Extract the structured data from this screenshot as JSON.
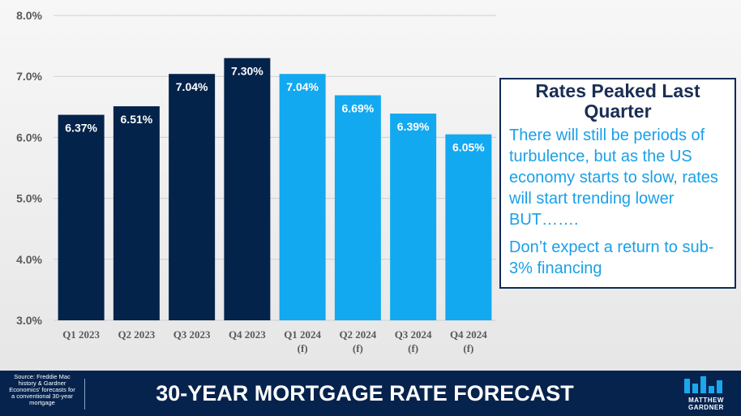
{
  "chart_data": {
    "type": "bar",
    "categories": [
      [
        "Q1 2023"
      ],
      [
        "Q2 2023"
      ],
      [
        "Q3 2023"
      ],
      [
        "Q4 2023"
      ],
      [
        "Q1 2024",
        "(f)"
      ],
      [
        "Q2 2024",
        "(f)"
      ],
      [
        "Q3 2024",
        "(f)"
      ],
      [
        "Q4 2024",
        "(f)"
      ]
    ],
    "values": [
      6.37,
      6.51,
      7.04,
      7.3,
      7.04,
      6.69,
      6.39,
      6.05
    ],
    "value_labels": [
      "6.37%",
      "6.51%",
      "7.04%",
      "7.30%",
      "7.04%",
      "6.69%",
      "6.39%",
      "6.05%"
    ],
    "ylim": [
      3.0,
      8.0
    ],
    "yticks": [
      "3.0%",
      "4.0%",
      "5.0%",
      "6.0%",
      "7.0%",
      "8.0%"
    ],
    "grid": true,
    "colors": {
      "actual": "#04234b",
      "forecast": "#12a9f0",
      "grid": "#cfcfcf"
    },
    "forecast_from_index": 4,
    "title": "",
    "xlabel": "",
    "ylabel": ""
  },
  "callout": {
    "title": "Rates Peaked Last Quarter",
    "body1": "There will still be periods of turbulence, but as the US economy starts to slow, rates will start trending lower BUT…….",
    "body2": "Don’t expect a return to sub-3% financing"
  },
  "footer": {
    "source": "Source: Freddie Mac history & Gardner Economics' forecasts for a conventional 30-year mortgage",
    "title": "30-YEAR MORTGAGE RATE FORECAST",
    "logo_line1": "MATTHEW",
    "logo_line2": "GARDNER",
    "background": "#06234d"
  }
}
